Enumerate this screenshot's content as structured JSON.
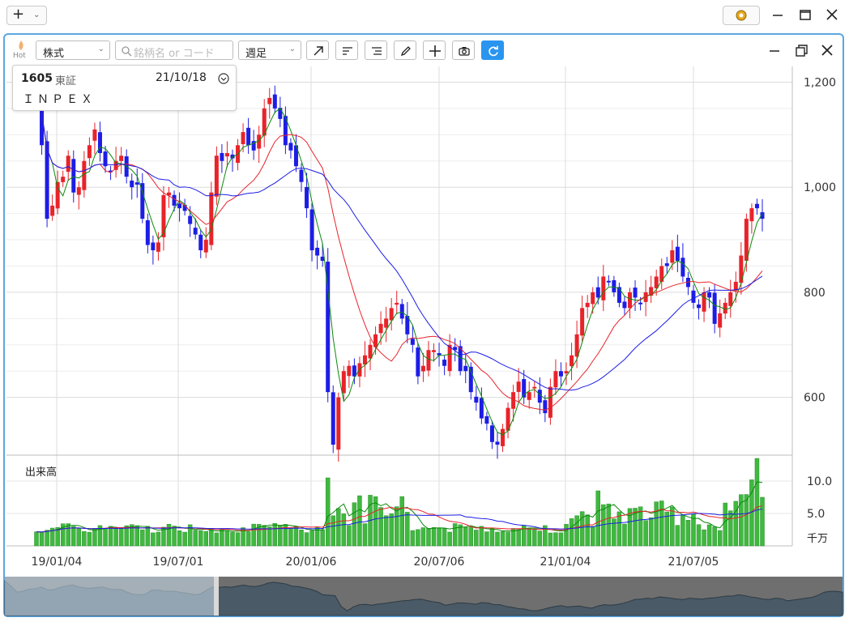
{
  "window": {
    "new_label": "+",
    "close": "✕"
  },
  "toolbar": {
    "hot_label": "Hot",
    "market": "株式",
    "search_placeholder": "銘柄名 or コード",
    "period": "週足"
  },
  "info": {
    "code": "1605",
    "exchange": "東証",
    "date": "21/10/18",
    "name": "ＩＮＰＥＸ"
  },
  "volume_label": "出来高",
  "volume_unit": "千万",
  "colors": {
    "up": "#e8232a",
    "down": "#1d1de6",
    "ma_short": "#0a8a0a",
    "ma_mid": "#e8232a",
    "ma_long": "#1d1de6",
    "volume": "#3fb93f",
    "accent": "#2a95ef"
  },
  "chart_data": {
    "type": "candlestick",
    "price_axis": {
      "ticks": [
        600,
        800,
        1000,
        1200
      ],
      "range": [
        490,
        1230
      ]
    },
    "volume_axis": {
      "ticks": [
        5.0,
        10.0
      ],
      "tick_labels": [
        "5.0",
        "10.0"
      ],
      "range": [
        0,
        14
      ]
    },
    "x_labels": [
      "19/01/04",
      "19/07/01",
      "20/01/06",
      "20/07/06",
      "21/01/04",
      "21/07/05"
    ],
    "closes": [
      1200,
      1080,
      940,
      965,
      1010,
      1020,
      1060,
      990,
      1000,
      1050,
      1080,
      1110,
      1065,
      1040,
      1030,
      1050,
      1060,
      1020,
      1000,
      1005,
      940,
      890,
      880,
      895,
      985,
      990,
      965,
      960,
      955,
      930,
      910,
      880,
      900,
      990,
      1060,
      1050,
      1065,
      1055,
      1080,
      1105,
      1080,
      1070,
      1100,
      1150,
      1170,
      1150,
      1130,
      1080,
      1070,
      1040,
      1010,
      960,
      880,
      870,
      860,
      610,
      510,
      600,
      650,
      660,
      640,
      665,
      680,
      700,
      720,
      740,
      750,
      770,
      780,
      750,
      720,
      700,
      640,
      660,
      690,
      690,
      680,
      660,
      700,
      690,
      650,
      650,
      610,
      590,
      560,
      550,
      515,
      510,
      540,
      580,
      610,
      630,
      600,
      610,
      620,
      590,
      570,
      620,
      650,
      640,
      650,
      680,
      720,
      770,
      780,
      800,
      790,
      830,
      820,
      800,
      780,
      770,
      800,
      790,
      780,
      800,
      810,
      830,
      850,
      850,
      880,
      860,
      830,
      810,
      780,
      770,
      800,
      790,
      740,
      760,
      780,
      800,
      820,
      870,
      940,
      960,
      960,
      940
    ]
  }
}
